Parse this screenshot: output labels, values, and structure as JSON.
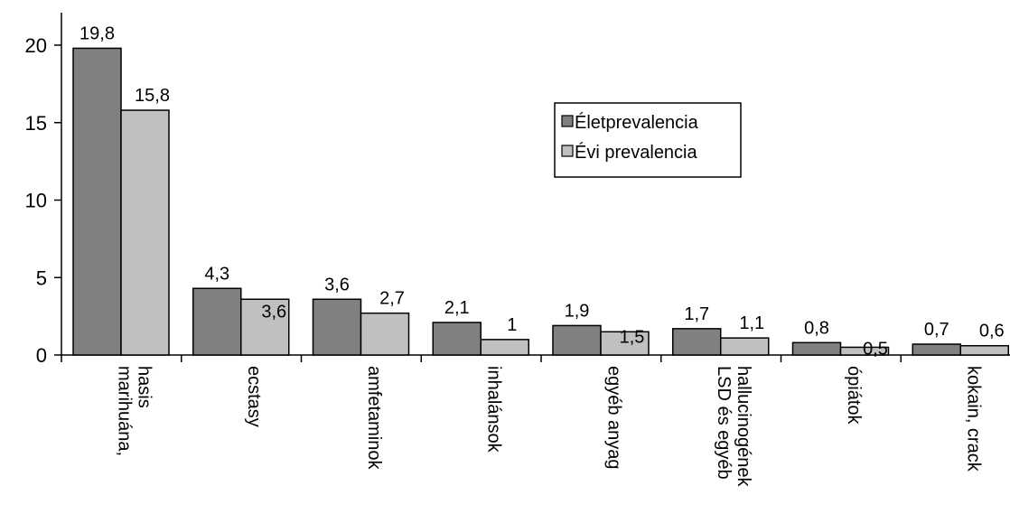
{
  "chart_data": {
    "type": "bar",
    "title": "",
    "xlabel": "",
    "ylabel": "",
    "ylim": [
      0,
      20
    ],
    "yticks": [
      "0",
      "5",
      "10",
      "15",
      "20"
    ],
    "grid": false,
    "legend_position": "upper-right",
    "categories": [
      [
        "marihuána,",
        "hasis"
      ],
      [
        "ecstasy"
      ],
      [
        "amfetaminok"
      ],
      [
        "inhalánsok"
      ],
      [
        "egyéb anyag"
      ],
      [
        "LSD és egyéb",
        "hallucinogének"
      ],
      [
        "ópiátok"
      ],
      [
        "kokain, crack"
      ]
    ],
    "series": [
      {
        "name": "Életprevalencia",
        "color": "#808080",
        "values": [
          19.8,
          4.3,
          3.6,
          2.1,
          1.9,
          1.7,
          0.8,
          0.7
        ],
        "labels": [
          "19,8",
          "4,3",
          "3,6",
          "2,1",
          "1,9",
          "1,7",
          "0,8",
          "0,7"
        ]
      },
      {
        "name": "Évi prevalencia",
        "color": "#c0c0c0",
        "values": [
          15.8,
          3.6,
          2.7,
          1.0,
          1.5,
          1.1,
          0.5,
          0.6
        ],
        "labels": [
          "15,8",
          "3,6",
          "2,7",
          "1",
          "1,5",
          "1,1",
          "0,5",
          "0,6"
        ]
      }
    ]
  }
}
